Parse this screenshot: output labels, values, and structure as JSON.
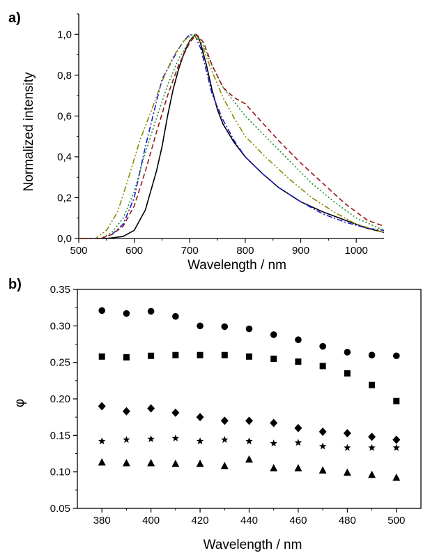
{
  "chart_data": [
    {
      "panel": "a)",
      "type": "line",
      "xlabel": "Wavelength / nm",
      "ylabel": "Normalized intensity",
      "xlim": [
        500,
        1050
      ],
      "ylim": [
        0,
        1.1
      ],
      "xticks": [
        500,
        600,
        700,
        800,
        900,
        1000
      ],
      "yticks": [
        0.0,
        0.2,
        0.4,
        0.6,
        0.8,
        1.0
      ],
      "xtick_labels": [
        "500",
        "600",
        "700",
        "800",
        "900",
        "1000"
      ],
      "ytick_labels": [
        "0,0",
        "0,2",
        "0,4",
        "0,6",
        "0,8",
        "1,0"
      ],
      "grid": false,
      "legend": "none",
      "series": [
        {
          "color": "#000000",
          "dash": "solid",
          "points": [
            [
              500,
              0
            ],
            [
              550,
              0
            ],
            [
              580,
              0.01
            ],
            [
              600,
              0.04
            ],
            [
              620,
              0.14
            ],
            [
              640,
              0.33
            ],
            [
              650,
              0.45
            ],
            [
              660,
              0.6
            ],
            [
              670,
              0.73
            ],
            [
              680,
              0.83
            ],
            [
              690,
              0.91
            ],
            [
              700,
              0.97
            ],
            [
              710,
              1.0
            ],
            [
              715,
              0.99
            ],
            [
              720,
              0.95
            ],
            [
              730,
              0.85
            ],
            [
              740,
              0.73
            ],
            [
              750,
              0.63
            ],
            [
              760,
              0.56
            ],
            [
              780,
              0.47
            ],
            [
              800,
              0.4
            ],
            [
              830,
              0.32
            ],
            [
              860,
              0.25
            ],
            [
              900,
              0.18
            ],
            [
              940,
              0.13
            ],
            [
              980,
              0.09
            ],
            [
              1020,
              0.05
            ],
            [
              1050,
              0.03
            ]
          ]
        },
        {
          "color": "#1c1cd8",
          "dash": "dashdot",
          "points": [
            [
              500,
              0
            ],
            [
              540,
              0
            ],
            [
              560,
              0.02
            ],
            [
              580,
              0.07
            ],
            [
              600,
              0.2
            ],
            [
              620,
              0.45
            ],
            [
              640,
              0.67
            ],
            [
              650,
              0.78
            ],
            [
              660,
              0.83
            ],
            [
              670,
              0.88
            ],
            [
              680,
              0.93
            ],
            [
              690,
              0.97
            ],
            [
              700,
              1.0
            ],
            [
              710,
              0.99
            ],
            [
              720,
              0.93
            ],
            [
              730,
              0.82
            ],
            [
              740,
              0.71
            ],
            [
              760,
              0.58
            ],
            [
              780,
              0.48
            ],
            [
              800,
              0.4
            ],
            [
              830,
              0.32
            ],
            [
              860,
              0.25
            ],
            [
              900,
              0.18
            ],
            [
              940,
              0.12
            ],
            [
              980,
              0.08
            ],
            [
              1020,
              0.05
            ],
            [
              1050,
              0.04
            ]
          ]
        },
        {
          "color": "#8a8a00",
          "dash": "dashdotdot",
          "points": [
            [
              500,
              0
            ],
            [
              530,
              0
            ],
            [
              550,
              0.04
            ],
            [
              570,
              0.13
            ],
            [
              590,
              0.3
            ],
            [
              610,
              0.48
            ],
            [
              630,
              0.62
            ],
            [
              650,
              0.77
            ],
            [
              670,
              0.89
            ],
            [
              690,
              0.97
            ],
            [
              705,
              1.0
            ],
            [
              720,
              0.96
            ],
            [
              740,
              0.82
            ],
            [
              760,
              0.69
            ],
            [
              780,
              0.59
            ],
            [
              800,
              0.5
            ],
            [
              840,
              0.39
            ],
            [
              880,
              0.29
            ],
            [
              920,
              0.2
            ],
            [
              960,
              0.13
            ],
            [
              1000,
              0.07
            ],
            [
              1050,
              0.03
            ]
          ]
        },
        {
          "color": "#17911f",
          "dash": "dotted",
          "points": [
            [
              500,
              0
            ],
            [
              540,
              0
            ],
            [
              560,
              0.03
            ],
            [
              580,
              0.1
            ],
            [
              600,
              0.23
            ],
            [
              620,
              0.42
            ],
            [
              640,
              0.59
            ],
            [
              660,
              0.75
            ],
            [
              680,
              0.88
            ],
            [
              700,
              0.97
            ],
            [
              710,
              1.0
            ],
            [
              720,
              0.97
            ],
            [
              740,
              0.85
            ],
            [
              760,
              0.74
            ],
            [
              780,
              0.67
            ],
            [
              800,
              0.6
            ],
            [
              840,
              0.49
            ],
            [
              880,
              0.38
            ],
            [
              920,
              0.27
            ],
            [
              960,
              0.18
            ],
            [
              1000,
              0.1
            ],
            [
              1050,
              0.04
            ]
          ]
        },
        {
          "color": "#9b1515",
          "dash": "dashed",
          "points": [
            [
              500,
              0
            ],
            [
              540,
              0
            ],
            [
              560,
              0.02
            ],
            [
              580,
              0.06
            ],
            [
              600,
              0.16
            ],
            [
              620,
              0.33
            ],
            [
              640,
              0.52
            ],
            [
              660,
              0.7
            ],
            [
              680,
              0.85
            ],
            [
              700,
              0.96
            ],
            [
              712,
              1.0
            ],
            [
              725,
              0.96
            ],
            [
              740,
              0.85
            ],
            [
              760,
              0.74
            ],
            [
              780,
              0.69
            ],
            [
              800,
              0.66
            ],
            [
              820,
              0.6
            ],
            [
              860,
              0.48
            ],
            [
              900,
              0.37
            ],
            [
              940,
              0.27
            ],
            [
              980,
              0.17
            ],
            [
              1020,
              0.09
            ],
            [
              1040,
              0.07
            ],
            [
              1050,
              0.06
            ]
          ]
        }
      ]
    },
    {
      "panel": "b)",
      "type": "scatter",
      "xlabel": "Wavelength / nm",
      "ylabel": "φ",
      "xlim": [
        370,
        510
      ],
      "ylim": [
        0.05,
        0.35
      ],
      "xticks": [
        380,
        400,
        420,
        440,
        460,
        480,
        500
      ],
      "yticks": [
        0.05,
        0.1,
        0.15,
        0.2,
        0.25,
        0.3,
        0.35
      ],
      "xtick_labels": [
        "380",
        "400",
        "420",
        "440",
        "460",
        "480",
        "500"
      ],
      "ytick_labels": [
        "0.05",
        "0.10",
        "0.15",
        "0.20",
        "0.25",
        "0.30",
        "0.35"
      ],
      "grid": false,
      "legend": "none",
      "x": [
        380,
        390,
        400,
        410,
        420,
        430,
        440,
        450,
        460,
        470,
        480,
        490,
        500
      ],
      "series": [
        {
          "marker": "circle",
          "values": [
            0.321,
            0.317,
            0.32,
            0.313,
            0.3,
            0.299,
            0.296,
            0.288,
            0.281,
            0.272,
            0.264,
            0.26,
            0.259
          ]
        },
        {
          "marker": "square",
          "values": [
            0.258,
            0.257,
            0.259,
            0.26,
            0.26,
            0.26,
            0.258,
            0.255,
            0.251,
            0.245,
            0.235,
            0.219,
            0.197
          ]
        },
        {
          "marker": "diamond",
          "values": [
            0.19,
            0.183,
            0.187,
            0.181,
            0.175,
            0.17,
            0.17,
            0.167,
            0.16,
            0.155,
            0.153,
            0.148,
            0.144
          ]
        },
        {
          "marker": "star",
          "values": [
            0.142,
            0.144,
            0.145,
            0.146,
            0.142,
            0.144,
            0.142,
            0.139,
            0.14,
            0.135,
            0.133,
            0.133,
            0.133
          ]
        },
        {
          "marker": "triangle",
          "values": [
            0.113,
            0.112,
            0.112,
            0.111,
            0.111,
            0.108,
            0.117,
            0.105,
            0.105,
            0.102,
            0.099,
            0.096,
            0.092
          ]
        }
      ]
    }
  ]
}
